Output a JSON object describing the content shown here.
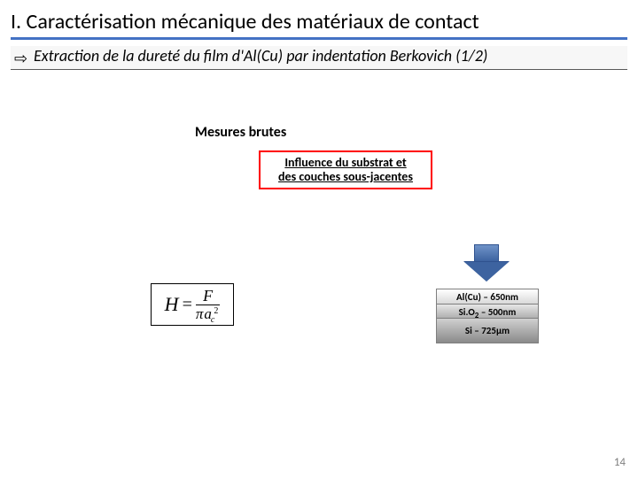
{
  "title": "I. Caractérisation mécanique des matériaux de contact",
  "subtitle_arrow": "⇨",
  "subtitle": "Extraction de la dureté du film d'Al(Cu) par indentation Berkovich (1/2)",
  "mesures_label": "Mesures brutes",
  "influence_line1": "Influence du substrat et",
  "influence_line2": "des couches sous-jacentes",
  "layers": {
    "l1_prefix": "Al(Cu) – 650",
    "l1_unit": "nm",
    "l2_prefix": "Si.O",
    "l2_sub": "2",
    "l2_suffix": " – 500",
    "l2_unit": "nm",
    "l3_prefix": "Si – 725",
    "l3_unit": "µm"
  },
  "formula": {
    "H": "H",
    "eq": "=",
    "F": "F",
    "pi": "π",
    "a": "a",
    "c": "c",
    "sq": "2"
  },
  "colors": {
    "title_rule": "#4472c4",
    "influence_border": "#ff0000",
    "arrow_fill_top": "#6f93c8",
    "arrow_fill_bottom": "#3d63a0",
    "arrow_border": "#2f528f",
    "stack_border": "#7f7f7f",
    "pagenum": "#7f7f7f"
  },
  "page_number": "14"
}
